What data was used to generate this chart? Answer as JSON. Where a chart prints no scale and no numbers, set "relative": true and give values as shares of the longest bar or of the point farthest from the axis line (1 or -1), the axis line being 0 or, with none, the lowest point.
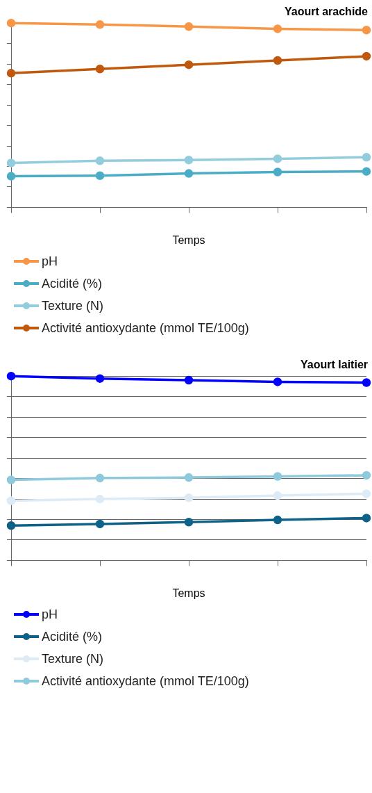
{
  "chart_data": [
    {
      "type": "line",
      "title": "Yaourt arachide",
      "xlabel": "Temps",
      "categories": [
        null,
        null,
        null,
        null,
        null
      ],
      "relative": true,
      "grid": false,
      "legend": "bottom",
      "marker": "circle",
      "line_style": "solid",
      "series": [
        {
          "name": "pH",
          "color": "#f79646",
          "values": [
            1,
            0.992,
            0.981,
            0.969,
            0.962
          ]
        },
        {
          "name": "Acidité (%)",
          "color": "#4bacc6",
          "values": [
            0.169,
            0.172,
            0.184,
            0.192,
            0.195
          ]
        },
        {
          "name": "Texture (N)",
          "color": "#93cddd",
          "values": [
            0.241,
            0.253,
            0.257,
            0.264,
            0.272
          ]
        },
        {
          "name": "Activité antioxydante (mmol TE/100g)",
          "color": "#c0580e",
          "values": [
            0.728,
            0.751,
            0.774,
            0.797,
            0.82
          ]
        }
      ]
    },
    {
      "type": "line",
      "title": "Yaourt laitier",
      "xlabel": "Temps",
      "categories": [
        null,
        null,
        null,
        null,
        null
      ],
      "relative": true,
      "grid": "y",
      "legend": "bottom",
      "marker": "circle",
      "line_style": "solid",
      "series": [
        {
          "name": "pH",
          "color": "#0000ff",
          "values": [
            1,
            0.987,
            0.978,
            0.969,
            0.965
          ]
        },
        {
          "name": "Acidité (%)",
          "color": "#0f6287",
          "values": [
            0.189,
            0.198,
            0.208,
            0.22,
            0.23
          ]
        },
        {
          "name": "Texture (N)",
          "color": "#dcebf5",
          "values": [
            0.324,
            0.333,
            0.34,
            0.352,
            0.362
          ]
        },
        {
          "name": "Activité antioxydante (mmol TE/100g)",
          "color": "#8ec9dc",
          "values": [
            0.437,
            0.447,
            0.45,
            0.456,
            0.462
          ]
        }
      ]
    }
  ]
}
